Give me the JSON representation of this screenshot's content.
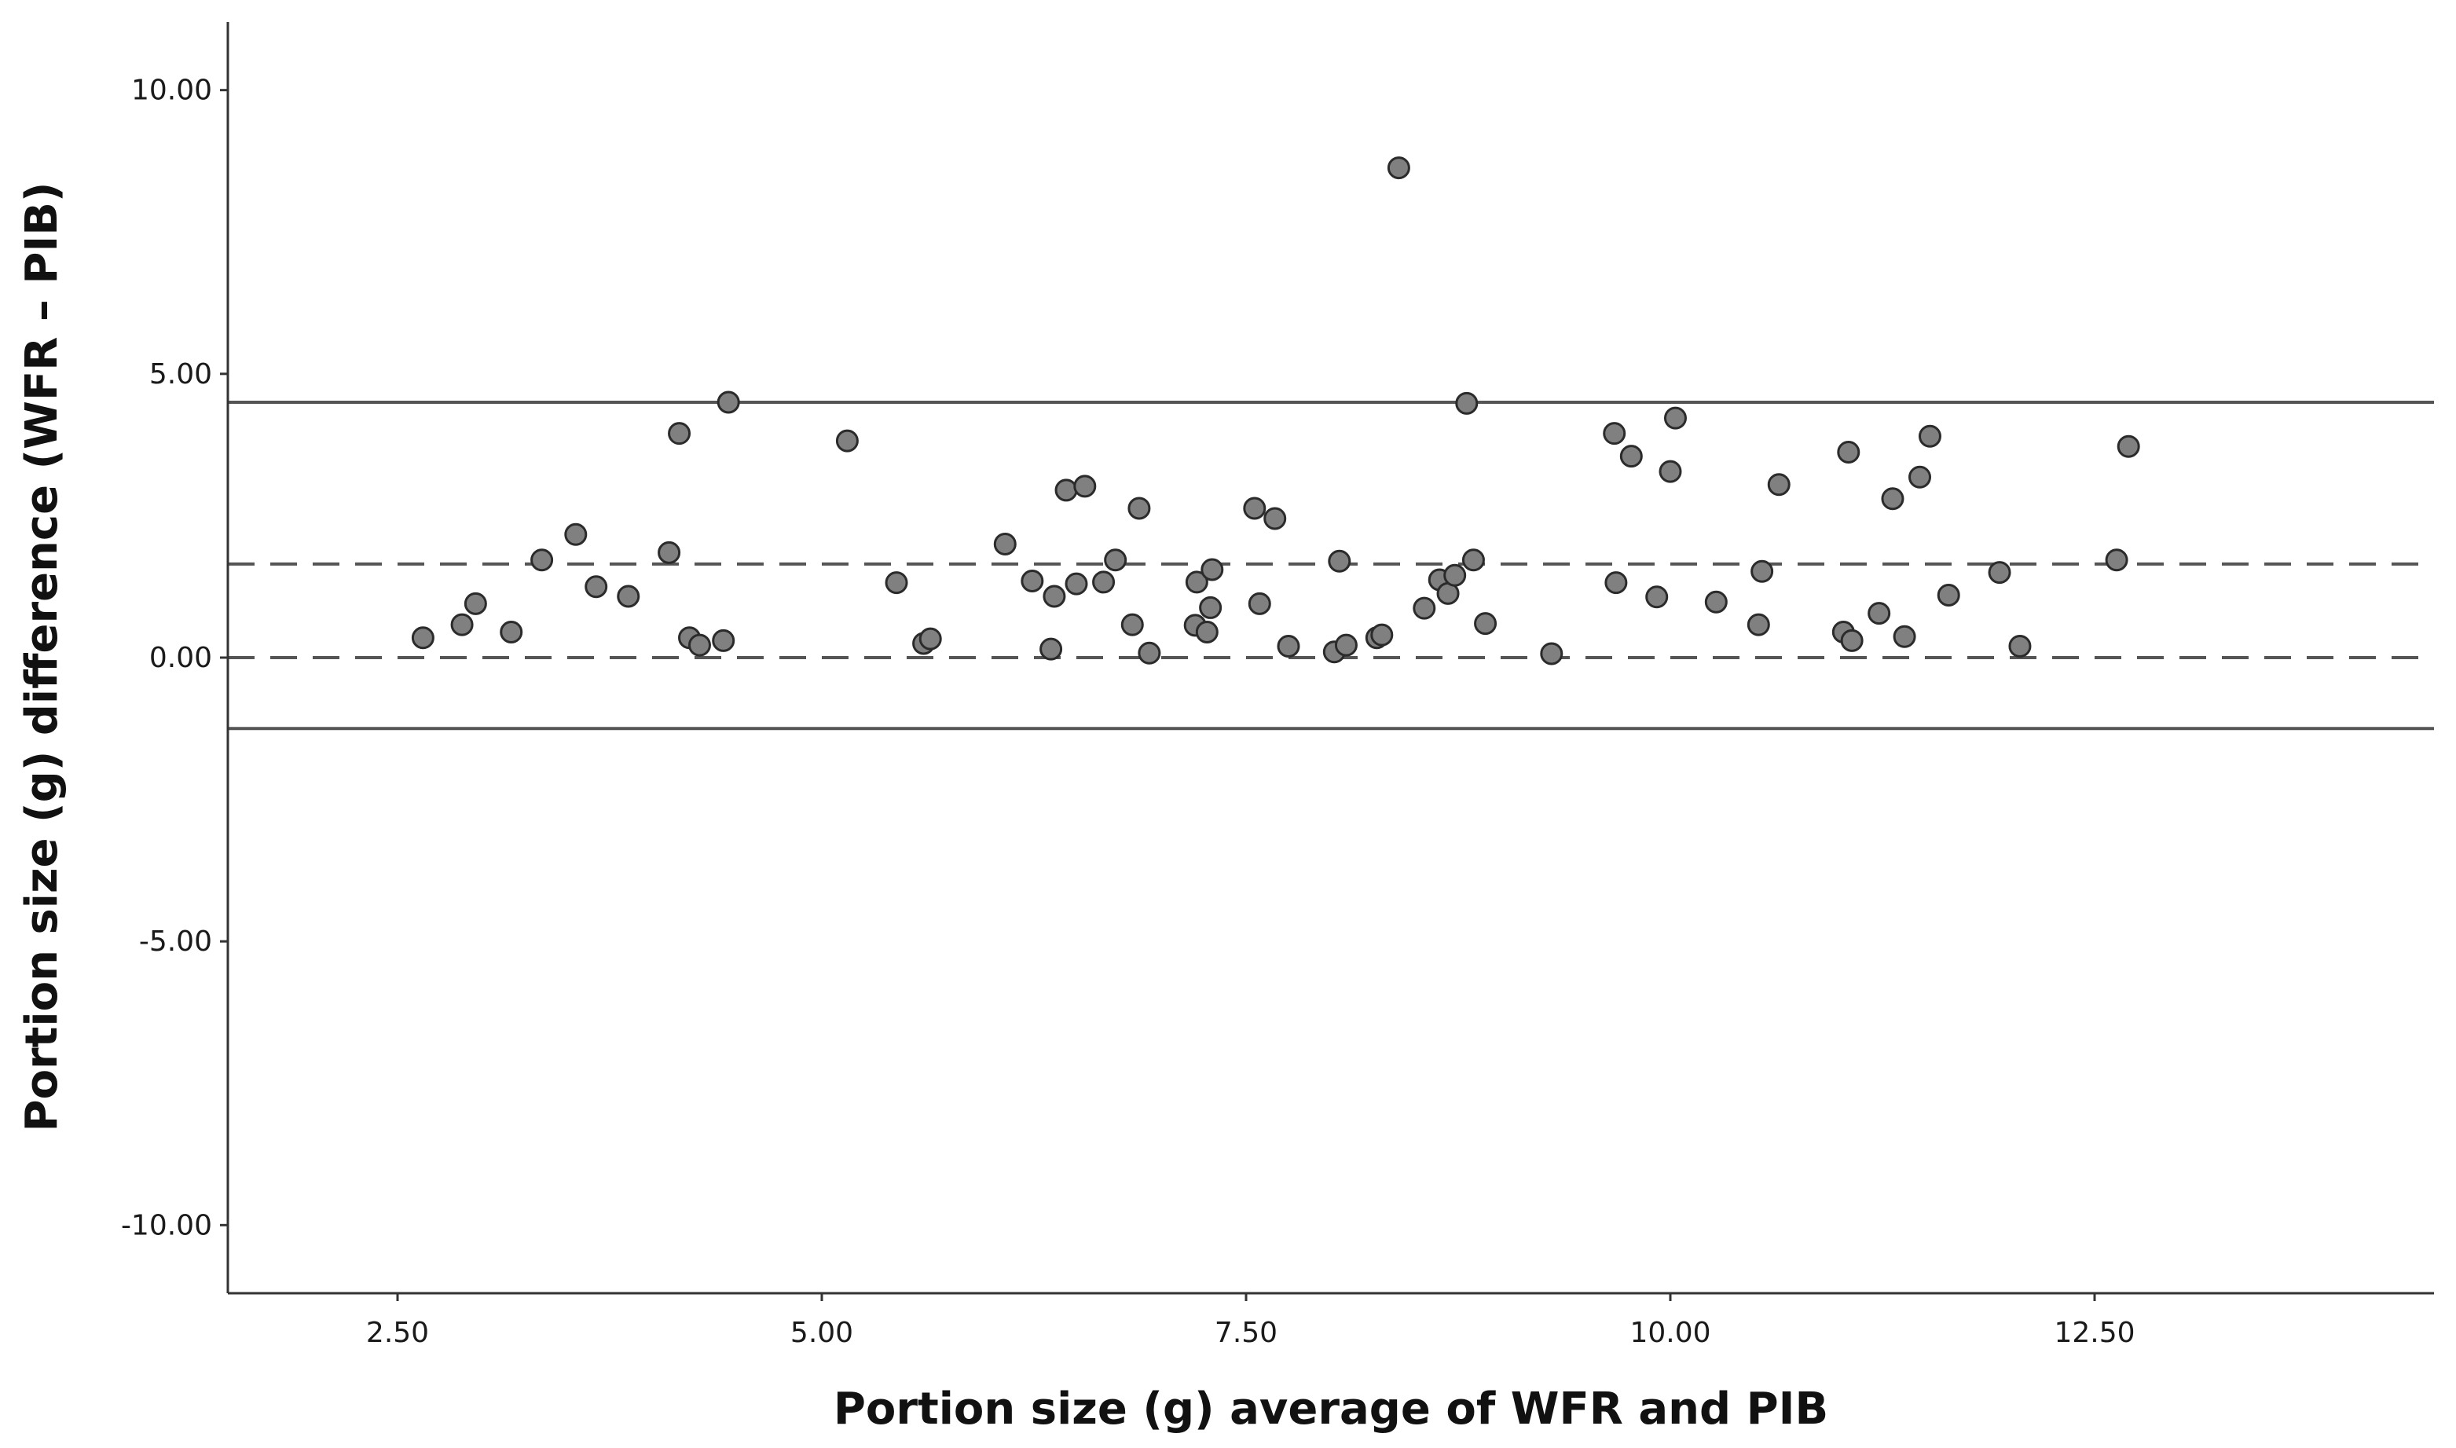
{
  "chart_data": {
    "type": "scatter",
    "title": "",
    "xlabel": "Portion size (g) average of WFR and PIB",
    "ylabel": "Portion size (g) difference (WFR – PIB)",
    "xlim": [
      1.5,
      14.5
    ],
    "ylim": [
      -11.2,
      11.2
    ],
    "x_ticks": [
      2.5,
      5.0,
      7.5,
      10.0,
      12.5
    ],
    "x_tick_labels": [
      "2.50",
      "5.00",
      "7.50",
      "10.00",
      "12.50"
    ],
    "y_ticks": [
      10,
      5,
      0,
      -5,
      -10
    ],
    "y_tick_labels": [
      "10.00",
      "5.00",
      "0.00",
      "-5.00",
      "-10.00"
    ],
    "grid": false,
    "reference_lines": [
      {
        "y": 4.5,
        "style": "solid"
      },
      {
        "y": 1.65,
        "style": "dashed"
      },
      {
        "y": 0.0,
        "style": "dashed"
      },
      {
        "y": -1.25,
        "style": "solid"
      }
    ],
    "marker_color": "#808080",
    "marker_edge_color": "#2b2b2b",
    "line_color": "#555555",
    "points": [
      {
        "x": 2.65,
        "y": 0.35
      },
      {
        "x": 2.88,
        "y": 0.58
      },
      {
        "x": 2.96,
        "y": 0.95
      },
      {
        "x": 3.17,
        "y": 0.45
      },
      {
        "x": 3.35,
        "y": 1.72
      },
      {
        "x": 3.55,
        "y": 2.17
      },
      {
        "x": 3.67,
        "y": 1.25
      },
      {
        "x": 3.86,
        "y": 1.08
      },
      {
        "x": 4.1,
        "y": 1.85
      },
      {
        "x": 4.16,
        "y": 3.95
      },
      {
        "x": 4.22,
        "y": 0.35
      },
      {
        "x": 4.28,
        "y": 0.22
      },
      {
        "x": 4.42,
        "y": 0.3
      },
      {
        "x": 4.45,
        "y": 4.5
      },
      {
        "x": 5.15,
        "y": 3.82
      },
      {
        "x": 5.44,
        "y": 1.32
      },
      {
        "x": 5.6,
        "y": 0.25
      },
      {
        "x": 5.64,
        "y": 0.33
      },
      {
        "x": 6.08,
        "y": 2.0
      },
      {
        "x": 6.24,
        "y": 1.35
      },
      {
        "x": 6.35,
        "y": 0.15
      },
      {
        "x": 6.37,
        "y": 1.08
      },
      {
        "x": 6.44,
        "y": 2.95
      },
      {
        "x": 6.5,
        "y": 1.3
      },
      {
        "x": 6.55,
        "y": 3.02
      },
      {
        "x": 6.66,
        "y": 1.33
      },
      {
        "x": 6.73,
        "y": 1.72
      },
      {
        "x": 6.83,
        "y": 0.58
      },
      {
        "x": 6.87,
        "y": 2.63
      },
      {
        "x": 6.93,
        "y": 0.08
      },
      {
        "x": 7.2,
        "y": 0.57
      },
      {
        "x": 7.21,
        "y": 1.33
      },
      {
        "x": 7.27,
        "y": 0.45
      },
      {
        "x": 7.29,
        "y": 0.88
      },
      {
        "x": 7.3,
        "y": 1.55
      },
      {
        "x": 7.55,
        "y": 2.63
      },
      {
        "x": 7.58,
        "y": 0.95
      },
      {
        "x": 7.67,
        "y": 2.45
      },
      {
        "x": 7.75,
        "y": 0.2
      },
      {
        "x": 8.02,
        "y": 0.1
      },
      {
        "x": 8.05,
        "y": 1.7
      },
      {
        "x": 8.09,
        "y": 0.22
      },
      {
        "x": 8.27,
        "y": 0.35
      },
      {
        "x": 8.3,
        "y": 0.4
      },
      {
        "x": 8.4,
        "y": 8.63
      },
      {
        "x": 8.55,
        "y": 0.87
      },
      {
        "x": 8.64,
        "y": 1.37
      },
      {
        "x": 8.69,
        "y": 1.13
      },
      {
        "x": 8.73,
        "y": 1.45
      },
      {
        "x": 8.8,
        "y": 4.48
      },
      {
        "x": 8.84,
        "y": 1.72
      },
      {
        "x": 8.91,
        "y": 0.6
      },
      {
        "x": 9.3,
        "y": 0.07
      },
      {
        "x": 9.67,
        "y": 3.95
      },
      {
        "x": 9.68,
        "y": 1.32
      },
      {
        "x": 9.77,
        "y": 3.55
      },
      {
        "x": 9.92,
        "y": 1.07
      },
      {
        "x": 10.0,
        "y": 3.28
      },
      {
        "x": 10.03,
        "y": 4.22
      },
      {
        "x": 10.27,
        "y": 0.98
      },
      {
        "x": 10.52,
        "y": 0.58
      },
      {
        "x": 10.54,
        "y": 1.52
      },
      {
        "x": 10.64,
        "y": 3.05
      },
      {
        "x": 11.02,
        "y": 0.45
      },
      {
        "x": 11.05,
        "y": 3.62
      },
      {
        "x": 11.07,
        "y": 0.3
      },
      {
        "x": 11.23,
        "y": 0.78
      },
      {
        "x": 11.31,
        "y": 2.8
      },
      {
        "x": 11.38,
        "y": 0.37
      },
      {
        "x": 11.47,
        "y": 3.18
      },
      {
        "x": 11.53,
        "y": 3.9
      },
      {
        "x": 11.64,
        "y": 1.1
      },
      {
        "x": 11.94,
        "y": 1.5
      },
      {
        "x": 12.06,
        "y": 0.2
      },
      {
        "x": 12.63,
        "y": 1.72
      },
      {
        "x": 12.7,
        "y": 3.72
      }
    ]
  }
}
